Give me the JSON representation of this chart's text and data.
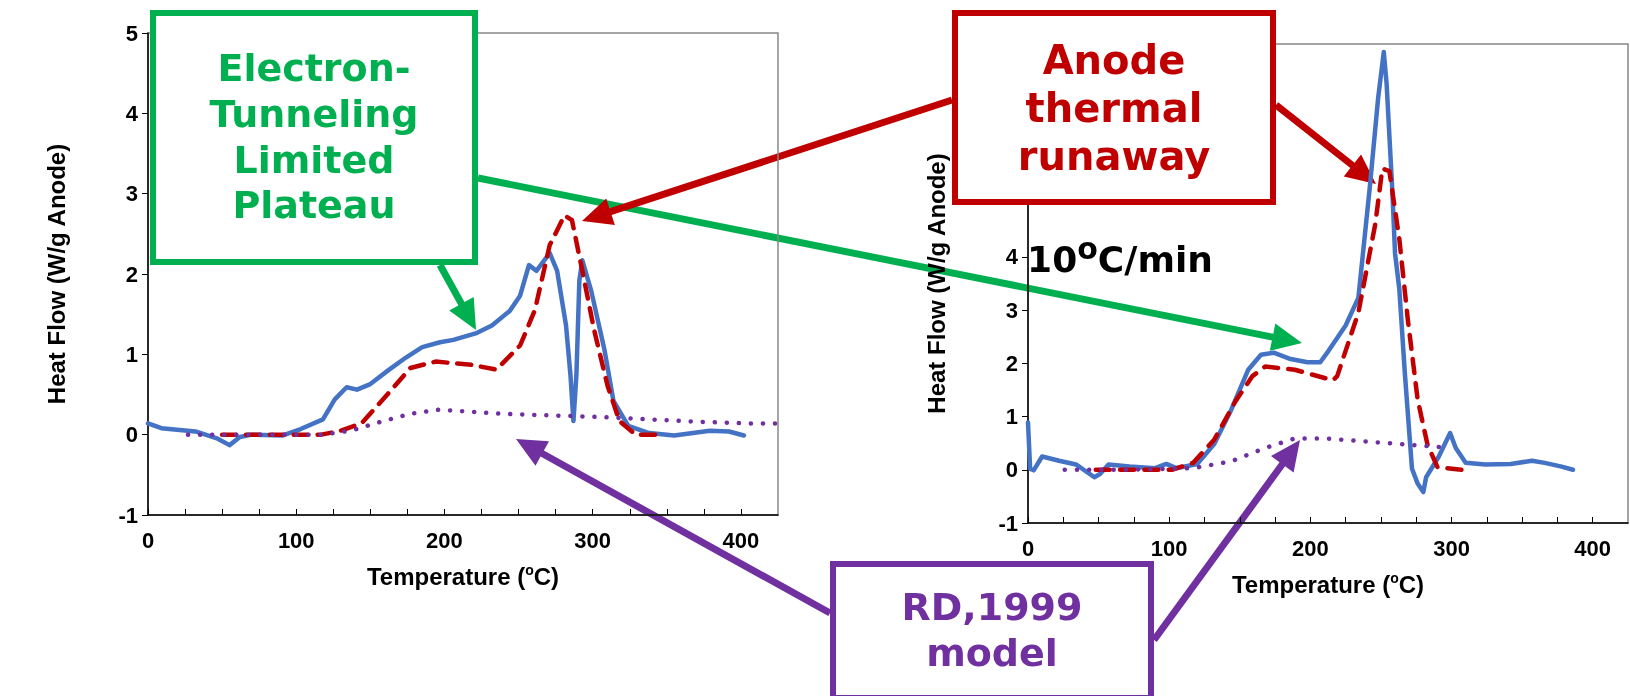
{
  "chart_data": [
    {
      "type": "line",
      "xlabel": "Temperature ($^{o}$C)",
      "ylabel": "Heat Flow (W/g Anode)",
      "marker": "none",
      "grid": false,
      "xlim": [
        0,
        425
      ],
      "xticks": [
        0,
        {
          "value": 25,
          "label": null
        },
        {
          "value": 50,
          "label": null
        },
        {
          "value": 75,
          "label": null
        },
        100,
        {
          "value": 125,
          "label": null
        },
        {
          "value": 150,
          "label": null
        },
        {
          "value": 175,
          "label": null
        },
        200,
        {
          "value": 225,
          "label": null
        },
        {
          "value": 250,
          "label": null
        },
        {
          "value": 275,
          "label": null
        },
        300,
        {
          "value": 325,
          "label": null
        },
        {
          "value": 350,
          "label": null
        },
        {
          "value": 375,
          "label": null
        },
        400
      ],
      "ylim": [
        -1,
        5
      ],
      "yticks": [
        -1,
        0,
        1,
        2,
        3,
        4,
        5
      ],
      "annotations": [
        "Electron-\nTunneling\nLimited\nPlateau"
      ],
      "series": [
        {
          "color": "#4472c4",
          "line_style": "solid",
          "x": [
            0,
            9,
            32,
            47,
            55,
            62,
            70,
            91,
            103,
            118,
            126,
            134,
            141,
            150,
            162,
            174,
            185,
            197,
            206,
            221,
            232,
            244,
            251,
            257,
            262,
            271,
            276,
            282,
            285,
            287,
            289,
            291,
            293,
            299,
            308,
            314,
            324,
            338,
            355,
            379,
            392,
            402
          ],
          "values": [
            0.14,
            0.08,
            0.04,
            -0.05,
            -0.13,
            -0.03,
            0,
            -0.01,
            0.07,
            0.19,
            0.44,
            0.59,
            0.56,
            0.63,
            0.8,
            0.96,
            1.09,
            1.15,
            1.18,
            1.26,
            1.36,
            1.54,
            1.73,
            2.11,
            2.04,
            2.26,
            2.04,
            1.36,
            0.74,
            0.17,
            0.74,
            1.92,
            2.17,
            1.79,
            1.05,
            0.42,
            0.11,
            0.02,
            -0.01,
            0.05,
            0.04,
            -0.01
          ]
        },
        {
          "color": "#c00000",
          "line_style": "dashed",
          "x": [
            50,
            117,
            130,
            144,
            161,
            177,
            194,
            218,
            235,
            251,
            261,
            271,
            281,
            286,
            293,
            301,
            310,
            318,
            329,
            342
          ],
          "values": [
            0,
            0,
            0.05,
            0.14,
            0.49,
            0.83,
            0.91,
            0.87,
            0.81,
            1.11,
            1.55,
            2.36,
            2.73,
            2.67,
            2.04,
            1.3,
            0.61,
            0.17,
            0,
            0
          ]
        },
        {
          "color": "#7030a0",
          "line_style": "dotted",
          "x": [
            27,
            57,
            117,
            137,
            157,
            177,
            196,
            214,
            238,
            271,
            305,
            338,
            372,
            406,
            423
          ],
          "values": [
            0,
            0,
            0,
            0.05,
            0.16,
            0.26,
            0.31,
            0.29,
            0.26,
            0.24,
            0.22,
            0.19,
            0.16,
            0.14,
            0.14
          ]
        }
      ]
    },
    {
      "type": "line",
      "xlabel": "Temperature ($^{o}$C)",
      "ylabel": "Heat Flow (W/g Anode)",
      "marker": "none",
      "grid": false,
      "xlim": [
        0,
        425
      ],
      "xticks": [
        0,
        {
          "value": 25,
          "label": null
        },
        {
          "value": 50,
          "label": null
        },
        {
          "value": 75,
          "label": null
        },
        100,
        {
          "value": 125,
          "label": null
        },
        {
          "value": 150,
          "label": null
        },
        {
          "value": 175,
          "label": null
        },
        200,
        {
          "value": 225,
          "label": null
        },
        {
          "value": 250,
          "label": null
        },
        {
          "value": 275,
          "label": null
        },
        300,
        {
          "value": 325,
          "label": null
        },
        {
          "value": 350,
          "label": null
        },
        {
          "value": 375,
          "label": null
        },
        400
      ],
      "ylim": [
        -1,
        8
      ],
      "yticks": [
        -1,
        0,
        1,
        2,
        3,
        4
      ],
      "annotations": [
        "Anode\nthermal\nrunaway",
        "RD,1999\nmodel",
        "10$^{o}$C/min"
      ],
      "series": [
        {
          "color": "#4472c4",
          "line_style": "solid",
          "x": [
            0,
            1.5,
            4,
            10,
            22,
            34,
            47,
            51,
            57,
            72,
            90,
            98,
            105,
            120,
            132,
            144,
            156,
            165,
            174,
            186,
            198,
            207,
            213,
            225,
            234,
            242,
            248,
            252,
            254,
            258,
            260,
            263,
            267,
            272,
            276,
            280,
            282,
            291,
            299,
            303,
            310,
            324,
            342,
            357,
            366,
            378,
            386
          ],
          "values": [
            0.89,
            0.02,
            -0.01,
            0.25,
            0.17,
            0.1,
            -0.14,
            -0.08,
            0.1,
            0.06,
            0.03,
            0.11,
            0.03,
            0.11,
            0.49,
            1.13,
            1.88,
            2.16,
            2.2,
            2.08,
            2.02,
            2.02,
            2.24,
            2.71,
            3.23,
            5.28,
            6.98,
            7.85,
            7.26,
            5.28,
            4.06,
            3.4,
            1.79,
            0.02,
            -0.26,
            -0.42,
            -0.14,
            0.25,
            0.69,
            0.41,
            0.13,
            0.1,
            0.11,
            0.17,
            0.13,
            0.06,
            0
          ]
        },
        {
          "color": "#c00000",
          "line_style": "dashed",
          "x": [
            48,
            102,
            117,
            132,
            147,
            159,
            168,
            189,
            216,
            219,
            234,
            246,
            251,
            256,
            263,
            269,
            276,
            283,
            290,
            307
          ],
          "values": [
            0,
            0,
            0.13,
            0.57,
            1.29,
            1.76,
            1.94,
            1.88,
            1.68,
            1.76,
            2.95,
            4.62,
            5.66,
            5.61,
            4.34,
            2.83,
            1.32,
            0.47,
            0.05,
            0
          ]
        },
        {
          "color": "#7030a0",
          "line_style": "dotted",
          "x": [
            26,
            72,
            117,
            144,
            168,
            189,
            210,
            240,
            270,
            291
          ],
          "values": [
            0,
            0,
            0.03,
            0.16,
            0.41,
            0.59,
            0.59,
            0.53,
            0.47,
            0.43
          ]
        }
      ]
    }
  ]
}
